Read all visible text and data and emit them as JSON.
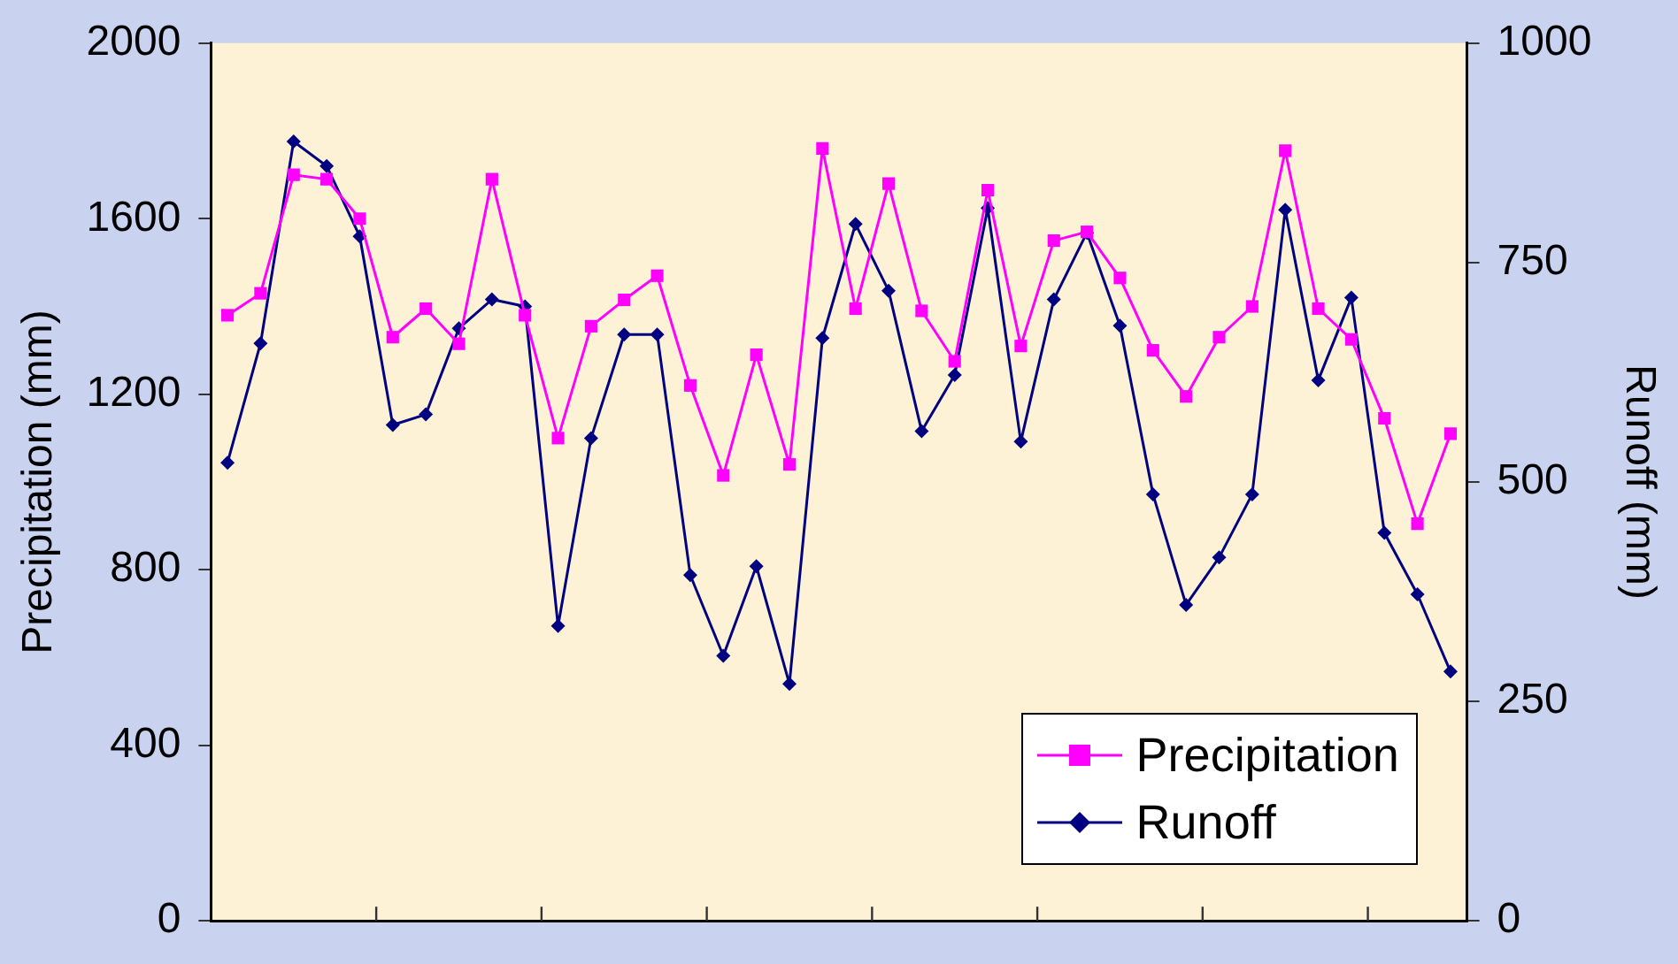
{
  "chart_data": {
    "type": "line",
    "ylabel": "Precipitation (mm)",
    "y2label": "Runoff (mm)",
    "categories": [
      null,
      null,
      null,
      null,
      null,
      null,
      null,
      null,
      null,
      null,
      null,
      null,
      null,
      null,
      null,
      null,
      null,
      null,
      null,
      null,
      null,
      null,
      null,
      null,
      null,
      null,
      null,
      null,
      null,
      null,
      null,
      null,
      null,
      null,
      null,
      null,
      null,
      null
    ],
    "series": [
      {
        "name": "Precipitation",
        "color": "#ff00ff",
        "marker": "square",
        "values": [
          1380,
          1430,
          1700,
          1690,
          1600,
          1330,
          1395,
          1315,
          1690,
          1380,
          1100,
          1355,
          1415,
          1470,
          1220,
          1015,
          1290,
          1040,
          1760,
          1395,
          1680,
          1390,
          1275,
          1665,
          1310,
          1550,
          1570,
          1465,
          1300,
          1195,
          1330,
          1400,
          1755,
          1395,
          1325,
          1145,
          905,
          1110
        ]
      },
      {
        "name": "Runoff",
        "color": "#000080",
        "marker": "diamond",
        "axis": "y2",
        "values": [
          522,
          658,
          888,
          860,
          780,
          565,
          577,
          675,
          708,
          700,
          336,
          550,
          668,
          668,
          394,
          302,
          404,
          270,
          664,
          794,
          718,
          558,
          622,
          812,
          546,
          708,
          784,
          678,
          486,
          360,
          414,
          486,
          810,
          616,
          710,
          442,
          372,
          284
        ]
      }
    ],
    "ylim": [
      0,
      2000
    ],
    "yticks": [
      0,
      400,
      800,
      1200,
      1600,
      2000
    ],
    "y2lim": [
      0,
      1000
    ],
    "y2ticks": [
      0,
      250,
      500,
      750,
      1000
    ],
    "grid": false,
    "legend": "bottom right"
  }
}
